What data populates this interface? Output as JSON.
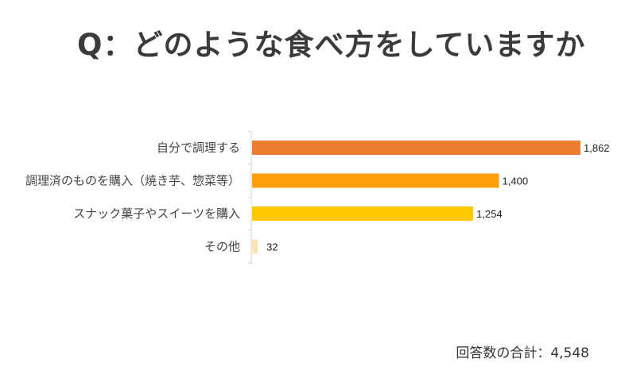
{
  "chart_data": {
    "type": "bar",
    "orientation": "horizontal",
    "title": "Q：どのような食べ方をしていますか",
    "categories": [
      "自分で調理する",
      "調理済のものを購入（焼き芋、惣菜等）",
      "スナック菓子やスイーツを購入",
      "その他"
    ],
    "values": [
      1862,
      1400,
      1254,
      32
    ],
    "value_labels": [
      "1,862",
      "1,400",
      "1,254",
      "32"
    ],
    "colors": [
      "#ED7D31",
      "#FFA00A",
      "#FFC800",
      "#FCE4B0"
    ],
    "xlim": [
      0,
      1862
    ],
    "grid": false,
    "legend": "none"
  },
  "footer": {
    "total_text": "回答数の合計：4,548"
  }
}
